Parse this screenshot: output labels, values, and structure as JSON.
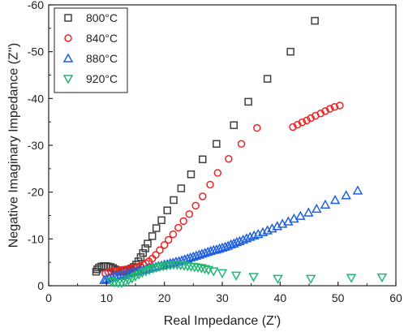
{
  "chart_data": {
    "type": "scatter",
    "xlabel": "Real Impedance (Z')",
    "ylabel": "Negative Imaginary Impedance (Z'')",
    "xlim": [
      0,
      60
    ],
    "ylim": [
      0,
      -60
    ],
    "x_ticks": [
      0,
      10,
      20,
      30,
      40,
      50,
      60
    ],
    "y_ticks": [
      0,
      -10,
      -20,
      -30,
      -40,
      -50,
      -60
    ],
    "x_tick_labels": [
      "0",
      "10",
      "20",
      "30",
      "40",
      "50",
      "60"
    ],
    "y_tick_labels": [
      "0",
      "-10",
      "-20",
      "-30",
      "-40",
      "-50",
      "-60"
    ],
    "grid": false,
    "legend_position": "top-left",
    "series": [
      {
        "name": "800°C",
        "color": "#404040",
        "marker": "square",
        "points": [
          [
            8.2,
            -3.0
          ],
          [
            8.4,
            -3.5
          ],
          [
            8.7,
            -3.9
          ],
          [
            9.1,
            -4.1
          ],
          [
            9.5,
            -4.2
          ],
          [
            9.9,
            -4.2
          ],
          [
            10.3,
            -4.1
          ],
          [
            10.7,
            -4.0
          ],
          [
            11.1,
            -3.8
          ],
          [
            11.5,
            -3.5
          ],
          [
            11.9,
            -3.3
          ],
          [
            12.3,
            -3.1
          ],
          [
            12.7,
            -3.0
          ],
          [
            13.1,
            -3.1
          ],
          [
            13.5,
            -3.2
          ],
          [
            13.9,
            -3.4
          ],
          [
            14.3,
            -3.7
          ],
          [
            14.7,
            -4.0
          ],
          [
            15.1,
            -4.5
          ],
          [
            15.5,
            -5.2
          ],
          [
            15.9,
            -6.1
          ],
          [
            16.3,
            -7.0
          ],
          [
            16.7,
            -8.0
          ],
          [
            17.1,
            -9.0
          ],
          [
            17.9,
            -10.6
          ],
          [
            18.6,
            -12.3
          ],
          [
            19.5,
            -14.0
          ],
          [
            20.5,
            -16.1
          ],
          [
            21.6,
            -18.3
          ],
          [
            22.9,
            -20.8
          ],
          [
            24.6,
            -23.8
          ],
          [
            26.6,
            -27.0
          ],
          [
            29.0,
            -30.3
          ],
          [
            32.0,
            -34.3
          ],
          [
            34.5,
            -39.3
          ],
          [
            37.8,
            -44.2
          ],
          [
            41.8,
            -50.0
          ],
          [
            46.0,
            -56.6
          ]
        ]
      },
      {
        "name": "840°C",
        "color": "#ee2222",
        "marker": "circle",
        "points": [
          [
            9.8,
            -2.6
          ],
          [
            10.3,
            -2.9
          ],
          [
            10.8,
            -3.0
          ],
          [
            11.3,
            -3.1
          ],
          [
            11.8,
            -3.2
          ],
          [
            12.3,
            -3.3
          ],
          [
            12.8,
            -3.4
          ],
          [
            13.3,
            -3.5
          ],
          [
            13.8,
            -3.6
          ],
          [
            14.3,
            -3.7
          ],
          [
            14.8,
            -3.8
          ],
          [
            15.3,
            -4.0
          ],
          [
            15.8,
            -4.2
          ],
          [
            16.3,
            -4.5
          ],
          [
            16.8,
            -4.8
          ],
          [
            17.3,
            -5.2
          ],
          [
            17.9,
            -5.8
          ],
          [
            18.5,
            -6.6
          ],
          [
            19.2,
            -7.6
          ],
          [
            20.0,
            -8.7
          ],
          [
            20.7,
            -9.8
          ],
          [
            21.5,
            -11.0
          ],
          [
            22.4,
            -12.4
          ],
          [
            23.3,
            -13.8
          ],
          [
            24.3,
            -15.3
          ],
          [
            25.4,
            -17.1
          ],
          [
            26.6,
            -19.1
          ],
          [
            27.9,
            -21.6
          ],
          [
            29.2,
            -24.1
          ],
          [
            31.1,
            -27.1
          ],
          [
            33.3,
            -30.3
          ],
          [
            36.0,
            -33.7
          ],
          [
            42.2,
            -33.9
          ],
          [
            43.0,
            -34.4
          ],
          [
            43.8,
            -34.9
          ],
          [
            44.6,
            -35.3
          ],
          [
            45.3,
            -35.8
          ],
          [
            46.1,
            -36.3
          ],
          [
            47.0,
            -36.8
          ],
          [
            47.8,
            -37.3
          ],
          [
            48.6,
            -37.8
          ],
          [
            49.4,
            -38.2
          ],
          [
            50.3,
            -38.5
          ]
        ]
      },
      {
        "name": "880°C",
        "color": "#1f5fe0",
        "marker": "triangle-up",
        "points": [
          [
            9.6,
            -1.2
          ],
          [
            10.0,
            -1.4
          ],
          [
            10.5,
            -1.6
          ],
          [
            11.0,
            -1.8
          ],
          [
            11.5,
            -2.0
          ],
          [
            12.0,
            -2.1
          ],
          [
            12.5,
            -2.3
          ],
          [
            13.0,
            -2.4
          ],
          [
            13.5,
            -2.6
          ],
          [
            14.0,
            -2.7
          ],
          [
            14.5,
            -2.9
          ],
          [
            15.0,
            -3.0
          ],
          [
            15.5,
            -3.2
          ],
          [
            16.0,
            -3.3
          ],
          [
            16.5,
            -3.4
          ],
          [
            17.0,
            -3.6
          ],
          [
            17.5,
            -3.7
          ],
          [
            18.0,
            -3.9
          ],
          [
            18.5,
            -4.0
          ],
          [
            19.0,
            -4.2
          ],
          [
            19.5,
            -4.3
          ],
          [
            20.0,
            -4.5
          ],
          [
            20.5,
            -4.6
          ],
          [
            21.0,
            -4.8
          ],
          [
            21.5,
            -4.9
          ],
          [
            22.0,
            -5.1
          ],
          [
            22.5,
            -5.2
          ],
          [
            23.0,
            -5.4
          ],
          [
            23.5,
            -5.6
          ],
          [
            24.0,
            -5.8
          ],
          [
            24.5,
            -6.0
          ],
          [
            25.0,
            -6.2
          ],
          [
            25.5,
            -6.4
          ],
          [
            26.0,
            -6.6
          ],
          [
            26.5,
            -6.8
          ],
          [
            27.0,
            -7.0
          ],
          [
            27.5,
            -7.2
          ],
          [
            28.0,
            -7.4
          ],
          [
            28.5,
            -7.6
          ],
          [
            29.0,
            -7.7
          ],
          [
            29.5,
            -7.9
          ],
          [
            30.0,
            -8.1
          ],
          [
            30.5,
            -8.3
          ],
          [
            31.0,
            -8.5
          ],
          [
            31.5,
            -8.8
          ],
          [
            32.0,
            -9.0
          ],
          [
            32.5,
            -9.3
          ],
          [
            33.0,
            -9.5
          ],
          [
            33.6,
            -9.8
          ],
          [
            34.2,
            -10.1
          ],
          [
            34.8,
            -10.4
          ],
          [
            35.5,
            -10.7
          ],
          [
            36.2,
            -11.0
          ],
          [
            37.0,
            -11.4
          ],
          [
            37.8,
            -11.8
          ],
          [
            38.6,
            -12.2
          ],
          [
            39.5,
            -12.7
          ],
          [
            40.4,
            -13.2
          ],
          [
            41.4,
            -13.7
          ],
          [
            42.4,
            -14.3
          ],
          [
            43.5,
            -14.9
          ],
          [
            44.9,
            -15.6
          ],
          [
            46.3,
            -16.4
          ],
          [
            47.8,
            -17.3
          ],
          [
            49.5,
            -18.3
          ],
          [
            51.4,
            -19.3
          ],
          [
            53.4,
            -20.3
          ]
        ]
      },
      {
        "name": "920°C",
        "color": "#22b573",
        "marker": "triangle-down",
        "points": [
          [
            10.8,
            -0.9
          ],
          [
            11.4,
            -0.7
          ],
          [
            12.0,
            -0.6
          ],
          [
            12.6,
            -0.6
          ],
          [
            13.2,
            -0.8
          ],
          [
            13.8,
            -1.2
          ],
          [
            14.4,
            -1.6
          ],
          [
            15.0,
            -2.0
          ],
          [
            15.6,
            -2.4
          ],
          [
            16.2,
            -2.8
          ],
          [
            16.8,
            -3.1
          ],
          [
            17.4,
            -3.4
          ],
          [
            18.0,
            -3.7
          ],
          [
            18.6,
            -3.9
          ],
          [
            19.2,
            -4.1
          ],
          [
            19.8,
            -4.2
          ],
          [
            20.4,
            -4.3
          ],
          [
            21.0,
            -4.4
          ],
          [
            21.6,
            -4.5
          ],
          [
            22.2,
            -4.5
          ],
          [
            22.8,
            -4.4
          ],
          [
            23.4,
            -4.3
          ],
          [
            24.0,
            -4.2
          ],
          [
            24.6,
            -4.1
          ],
          [
            25.2,
            -4.0
          ],
          [
            25.8,
            -3.9
          ],
          [
            26.4,
            -3.8
          ],
          [
            27.0,
            -3.6
          ],
          [
            27.6,
            -3.4
          ],
          [
            28.5,
            -3.1
          ],
          [
            30.0,
            -2.7
          ],
          [
            32.4,
            -2.2
          ],
          [
            35.4,
            -1.9
          ],
          [
            39.6,
            -1.5
          ],
          [
            45.3,
            -1.5
          ],
          [
            52.3,
            -1.7
          ],
          [
            57.6,
            -1.8
          ]
        ]
      }
    ]
  }
}
